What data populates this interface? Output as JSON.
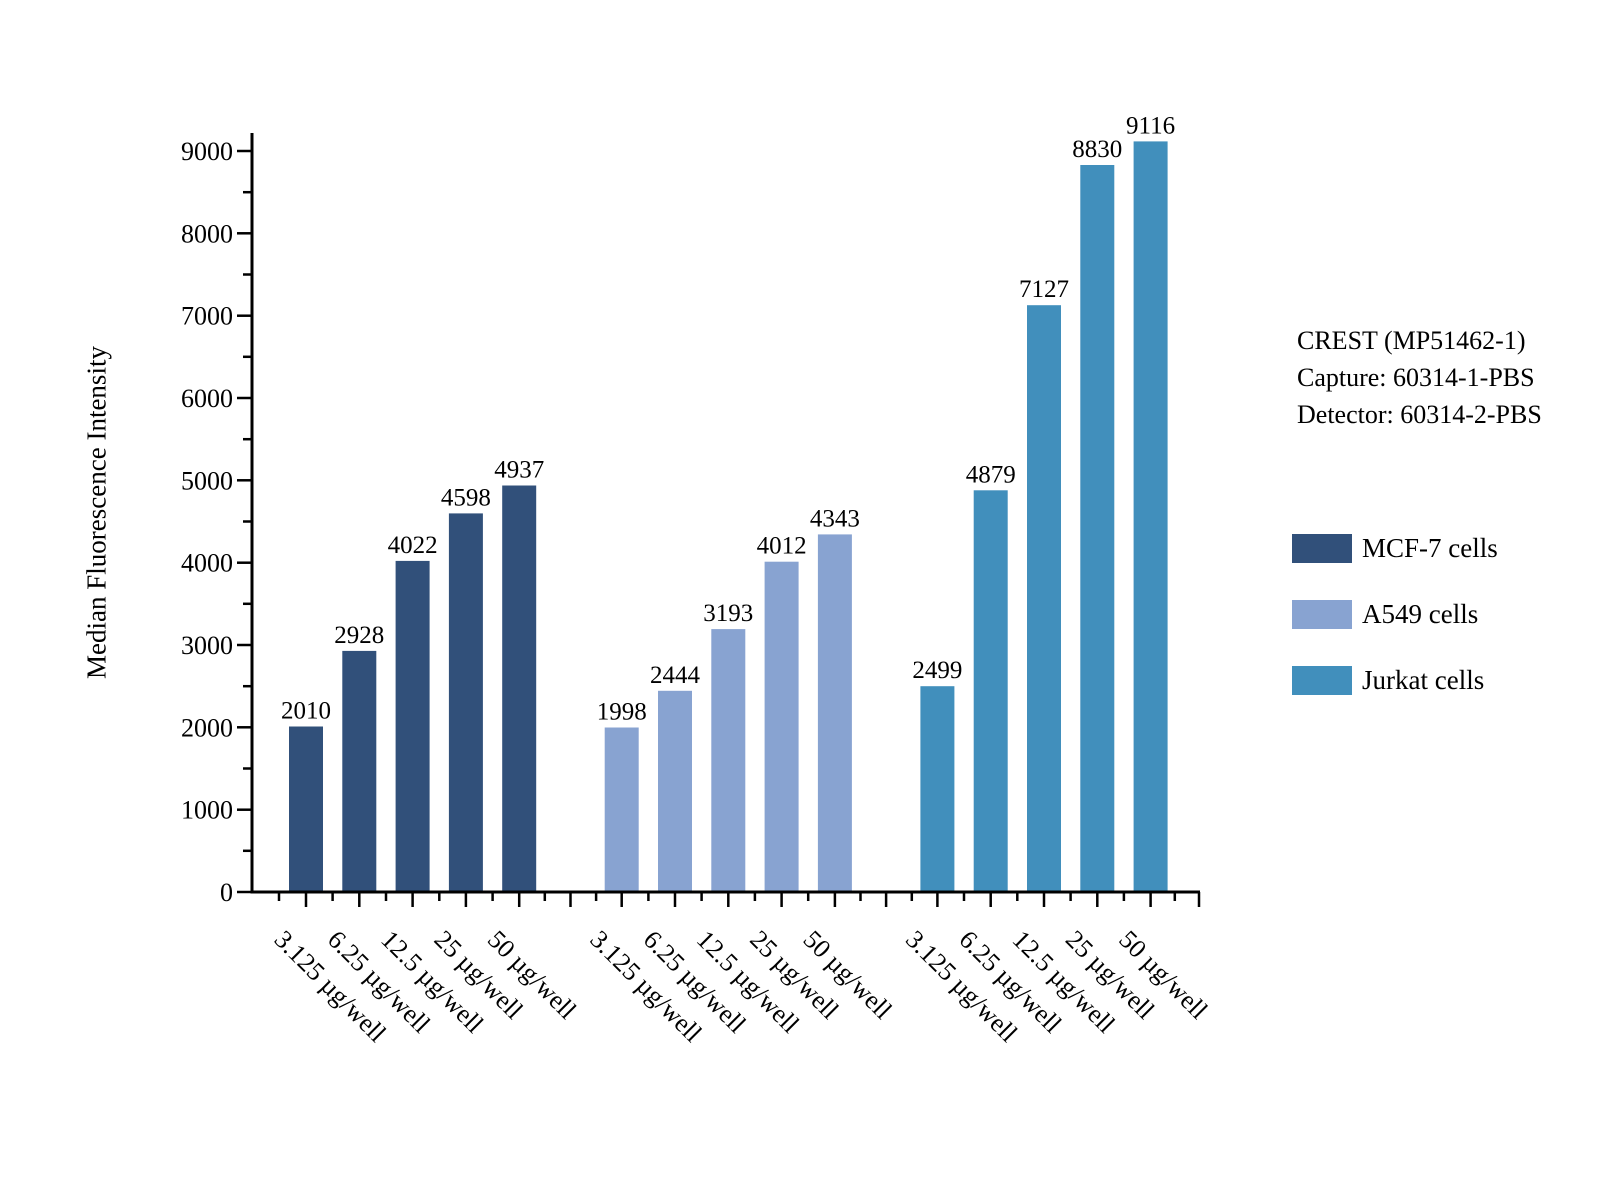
{
  "chart_data": {
    "type": "bar",
    "title": "",
    "ylabel": "Median Fluorescence Intensity",
    "xlabel": "",
    "ylim": [
      0,
      9228
    ],
    "ytick_major_step": 1000,
    "ytick_minor_step": 500,
    "ytick_labels": [
      "0",
      "1000",
      "2000",
      "3000",
      "4000",
      "5000",
      "6000",
      "7000",
      "8000",
      "9000"
    ],
    "grid": false,
    "legend_position": "right",
    "bar_value_labels": true,
    "categories": [
      "3.125 µg/well",
      "6.25 µg/well",
      "12.5 µg/well",
      "25 µg/well",
      "50 µg/well"
    ],
    "series": [
      {
        "name": "MCF-7 cells",
        "color": "#31507A",
        "values": [
          2010,
          2928,
          4022,
          4598,
          4937
        ]
      },
      {
        "name": "A549 cells",
        "color": "#88A3D1",
        "values": [
          1998,
          2444,
          3193,
          4012,
          4343
        ]
      },
      {
        "name": "Jurkat cells",
        "color": "#418FBC",
        "values": [
          2499,
          4879,
          7127,
          8830,
          9116
        ]
      }
    ]
  },
  "annotation": {
    "lines": [
      "CREST (MP51462-1)",
      "Capture: 60314-1-PBS",
      "Detector: 60314-2-PBS"
    ]
  },
  "colors": {
    "axis": "#000000",
    "text": "#000000",
    "background": "#FFFFFF"
  }
}
